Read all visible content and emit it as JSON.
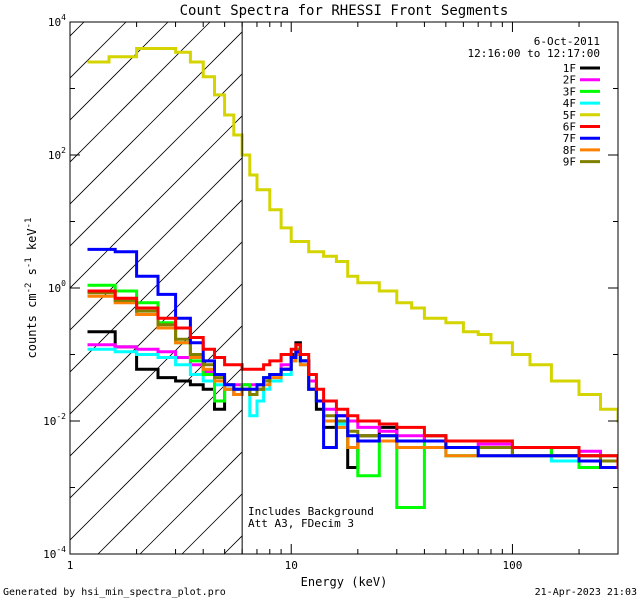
{
  "chart_data": {
    "type": "line",
    "title": "Count Spectra for RHESSI Front Segments",
    "xlabel": "Energy (keV)",
    "ylabel_parts": [
      "counts cm",
      "-2",
      " s",
      "-1",
      " keV",
      "-1"
    ],
    "xscale": "log",
    "yscale": "log",
    "xlim": [
      1,
      300
    ],
    "ylim": [
      0.0001,
      10000
    ],
    "x_ticks": [
      {
        "value": 1,
        "label": "1"
      },
      {
        "value": 10,
        "label": "10"
      },
      {
        "value": 100,
        "label": "100"
      }
    ],
    "y_ticks": [
      {
        "value": 0.0001,
        "base": "10",
        "exp": "-4"
      },
      {
        "value": 0.01,
        "base": "10",
        "exp": "-2"
      },
      {
        "value": 1,
        "base": "10",
        "exp": "0"
      },
      {
        "value": 100,
        "base": "10",
        "exp": "2"
      },
      {
        "value": 10000,
        "base": "10",
        "exp": "4"
      }
    ],
    "date": "6-Oct-2011",
    "time_range": "12:16:00 to 12:17:00",
    "hatched_region_max_energy": 6,
    "annotations": [
      "Includes Background",
      "Att A3, FDecim  3"
    ],
    "series": [
      {
        "name": "1F",
        "color": "#000000",
        "x": [
          1.2,
          1.6,
          2,
          2.5,
          3,
          3.5,
          4,
          4.5,
          5,
          5.5,
          6,
          6.5,
          7,
          7.5,
          8,
          9,
          10,
          10.5,
          11,
          12,
          13,
          14,
          16,
          18,
          20,
          25,
          30,
          40,
          50,
          70,
          100,
          150,
          200,
          250,
          300
        ],
        "y": [
          0.22,
          0.13,
          0.06,
          0.045,
          0.04,
          0.035,
          0.03,
          0.015,
          0.03,
          0.025,
          0.03,
          0.025,
          0.03,
          0.04,
          0.05,
          0.06,
          0.1,
          0.15,
          0.08,
          0.03,
          0.015,
          0.008,
          0.01,
          0.002,
          0.006,
          0.008,
          0.005,
          0.006,
          0.004,
          0.004,
          0.003,
          0.003,
          0.003,
          0.0025,
          0.002
        ]
      },
      {
        "name": "2F",
        "color": "#ff00ff",
        "x": [
          1.2,
          1.6,
          2,
          2.5,
          3,
          3.5,
          4,
          4.5,
          5,
          5.5,
          6,
          6.5,
          7,
          7.5,
          8,
          9,
          10,
          10.5,
          11,
          12,
          13,
          14,
          16,
          18,
          20,
          25,
          30,
          40,
          50,
          70,
          100,
          150,
          200,
          250,
          300
        ],
        "y": [
          0.14,
          0.13,
          0.12,
          0.11,
          0.09,
          0.07,
          0.055,
          0.04,
          0.035,
          0.035,
          0.035,
          0.035,
          0.035,
          0.04,
          0.05,
          0.07,
          0.09,
          0.11,
          0.08,
          0.04,
          0.02,
          0.015,
          0.012,
          0.01,
          0.008,
          0.007,
          0.006,
          0.005,
          0.004,
          0.0045,
          0.004,
          0.003,
          0.0035,
          0.003,
          0.0025
        ]
      },
      {
        "name": "3F",
        "color": "#00ff00",
        "x": [
          1.2,
          1.6,
          2,
          2.5,
          3,
          3.5,
          4,
          4.5,
          5,
          5.5,
          6,
          6.5,
          7,
          7.5,
          8,
          9,
          10,
          10.5,
          11,
          12,
          13,
          14,
          16,
          18,
          20,
          25,
          30,
          40,
          50,
          70,
          100,
          150,
          200,
          250,
          300
        ],
        "y": [
          1.1,
          0.9,
          0.6,
          0.3,
          0.15,
          0.08,
          0.05,
          0.02,
          0.03,
          0.03,
          0.035,
          0.03,
          0.035,
          0.045,
          0.05,
          0.06,
          0.09,
          0.12,
          0.08,
          0.03,
          0.02,
          0.01,
          0.008,
          0.004,
          0.0015,
          0.006,
          0.0005,
          0.005,
          0.003,
          0.004,
          0.004,
          0.003,
          0.002,
          0.003,
          0.002
        ]
      },
      {
        "name": "4F",
        "color": "#00ffff",
        "x": [
          1.2,
          1.6,
          2,
          2.5,
          3,
          3.5,
          4,
          4.5,
          5,
          5.5,
          6,
          6.5,
          7,
          7.5,
          8,
          9,
          10,
          10.5,
          11,
          12,
          13,
          14,
          16,
          18,
          20,
          25,
          30,
          40,
          50,
          70,
          100,
          150,
          200,
          250,
          300
        ],
        "y": [
          0.12,
          0.11,
          0.1,
          0.09,
          0.07,
          0.05,
          0.04,
          0.035,
          0.03,
          0.03,
          0.03,
          0.012,
          0.02,
          0.03,
          0.04,
          0.05,
          0.08,
          0.1,
          0.07,
          0.03,
          0.02,
          0.01,
          0.009,
          0.006,
          0.005,
          0.005,
          0.004,
          0.004,
          0.003,
          0.003,
          0.003,
          0.0025,
          0.0025,
          0.002,
          0.002
        ]
      },
      {
        "name": "5F",
        "color": "#d4d400",
        "x": [
          1.2,
          1.5,
          2,
          2.5,
          3,
          3.5,
          4,
          4.5,
          5,
          5.5,
          6,
          6.5,
          7,
          8,
          9,
          10,
          12,
          14,
          16,
          18,
          20,
          25,
          30,
          35,
          40,
          50,
          60,
          70,
          80,
          100,
          120,
          150,
          200,
          250,
          300
        ],
        "y": [
          2500,
          3000,
          4000,
          4000,
          3500,
          2500,
          1500,
          800,
          400,
          200,
          100,
          50,
          30,
          15,
          8,
          5,
          3.5,
          3,
          2.5,
          1.5,
          1.2,
          0.9,
          0.6,
          0.5,
          0.35,
          0.3,
          0.22,
          0.2,
          0.15,
          0.1,
          0.07,
          0.04,
          0.025,
          0.015,
          0.01
        ]
      },
      {
        "name": "6F",
        "color": "#ff0000",
        "x": [
          1.2,
          1.6,
          2,
          2.5,
          3,
          3.5,
          4,
          4.5,
          5,
          5.5,
          6,
          6.5,
          7,
          7.5,
          8,
          9,
          10,
          10.5,
          11,
          12,
          13,
          14,
          16,
          18,
          20,
          25,
          30,
          40,
          50,
          70,
          100,
          150,
          200,
          250,
          300
        ],
        "y": [
          0.9,
          0.7,
          0.5,
          0.35,
          0.25,
          0.18,
          0.12,
          0.09,
          0.07,
          0.07,
          0.06,
          0.06,
          0.06,
          0.07,
          0.08,
          0.1,
          0.12,
          0.14,
          0.1,
          0.05,
          0.03,
          0.02,
          0.015,
          0.012,
          0.01,
          0.009,
          0.008,
          0.006,
          0.005,
          0.005,
          0.004,
          0.004,
          0.003,
          0.003,
          0.002
        ]
      },
      {
        "name": "7F",
        "color": "#0000ff",
        "x": [
          1.2,
          1.6,
          2,
          2.5,
          3,
          3.5,
          4,
          4.5,
          5,
          5.5,
          6,
          6.5,
          7,
          7.5,
          8,
          9,
          10,
          10.5,
          11,
          12,
          13,
          14,
          16,
          18,
          20,
          25,
          30,
          40,
          50,
          70,
          100,
          150,
          200,
          250,
          300
        ],
        "y": [
          3.8,
          3.5,
          1.5,
          0.8,
          0.35,
          0.15,
          0.08,
          0.05,
          0.035,
          0.03,
          0.03,
          0.03,
          0.035,
          0.045,
          0.05,
          0.06,
          0.09,
          0.11,
          0.08,
          0.03,
          0.02,
          0.004,
          0.012,
          0.006,
          0.005,
          0.006,
          0.005,
          0.005,
          0.004,
          0.003,
          0.003,
          0.003,
          0.0025,
          0.002,
          0.002
        ]
      },
      {
        "name": "8F",
        "color": "#ff8000",
        "x": [
          1.2,
          1.6,
          2,
          2.5,
          3,
          3.5,
          4,
          4.5,
          5,
          5.5,
          6,
          6.5,
          7,
          7.5,
          8,
          9,
          10,
          10.5,
          11,
          12,
          13,
          14,
          16,
          18,
          20,
          25,
          30,
          40,
          50,
          70,
          100,
          150,
          200,
          250,
          300
        ],
        "y": [
          0.75,
          0.6,
          0.4,
          0.25,
          0.15,
          0.09,
          0.06,
          0.04,
          0.03,
          0.025,
          0.03,
          0.025,
          0.03,
          0.035,
          0.045,
          0.06,
          0.08,
          0.1,
          0.07,
          0.03,
          0.02,
          0.01,
          0.008,
          0.004,
          0.005,
          0.005,
          0.004,
          0.004,
          0.003,
          0.003,
          0.003,
          0.003,
          0.0025,
          0.0025,
          0.002
        ]
      },
      {
        "name": "9F",
        "color": "#808000",
        "x": [
          1.2,
          1.6,
          2,
          2.5,
          3,
          3.5,
          4,
          4.5,
          5,
          5.5,
          6,
          6.5,
          7,
          7.5,
          8,
          9,
          10,
          10.5,
          11,
          12,
          13,
          14,
          16,
          18,
          20,
          25,
          30,
          40,
          50,
          70,
          100,
          150,
          200,
          250,
          300
        ],
        "y": [
          0.85,
          0.65,
          0.45,
          0.28,
          0.17,
          0.1,
          0.07,
          0.045,
          0.035,
          0.03,
          0.03,
          0.025,
          0.03,
          0.04,
          0.05,
          0.06,
          0.09,
          0.12,
          0.08,
          0.03,
          0.02,
          0.012,
          0.01,
          0.007,
          0.006,
          0.006,
          0.005,
          0.005,
          0.004,
          0.004,
          0.003,
          0.003,
          0.003,
          0.0025,
          0.002
        ]
      }
    ]
  },
  "footer": {
    "generated_by": "Generated by hsi_min_spectra_plot.pro",
    "timestamp": "21-Apr-2023 21:03"
  }
}
